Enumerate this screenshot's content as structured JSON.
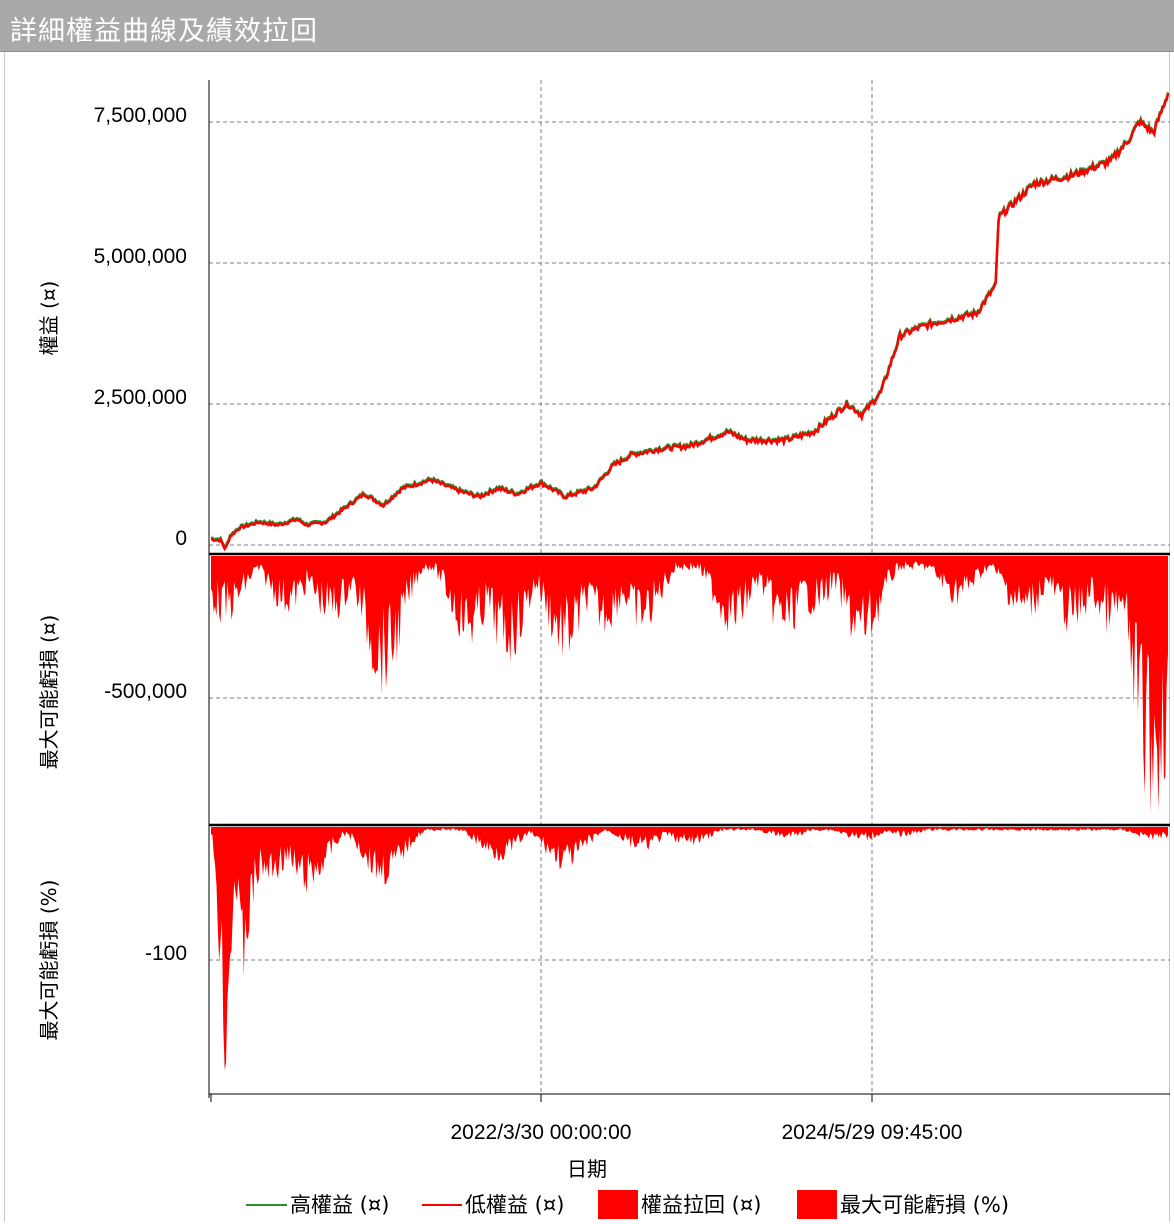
{
  "window": {
    "title": "詳細權益曲線及績效拉回"
  },
  "colors": {
    "high": "#2e8b2e",
    "low": "#ff0000",
    "fill": "#ff0000",
    "grid": "#808080"
  },
  "chart_data": [
    {
      "type": "line",
      "panel": "equity",
      "ylabel": "權益 (¤)",
      "yticks": [
        "7,500,000",
        "5,000,000",
        "2,500,000",
        "0"
      ],
      "ylim": [
        -150000,
        8200000
      ],
      "series": [
        {
          "name": "高權益 (¤)",
          "color": "#2e8b2e"
        },
        {
          "name": "低權益 (¤)",
          "color": "#ff0000"
        }
      ],
      "points": [
        [
          0,
          100000
        ],
        [
          0.01,
          80000
        ],
        [
          0.015,
          -80000
        ],
        [
          0.02,
          150000
        ],
        [
          0.03,
          300000
        ],
        [
          0.05,
          400000
        ],
        [
          0.07,
          350000
        ],
        [
          0.09,
          450000
        ],
        [
          0.1,
          350000
        ],
        [
          0.12,
          400000
        ],
        [
          0.14,
          650000
        ],
        [
          0.16,
          900000
        ],
        [
          0.18,
          700000
        ],
        [
          0.2,
          1000000
        ],
        [
          0.23,
          1150000
        ],
        [
          0.26,
          950000
        ],
        [
          0.28,
          850000
        ],
        [
          0.3,
          1000000
        ],
        [
          0.32,
          900000
        ],
        [
          0.345,
          1100000
        ],
        [
          0.37,
          850000
        ],
        [
          0.4,
          1000000
        ],
        [
          0.42,
          1400000
        ],
        [
          0.44,
          1600000
        ],
        [
          0.47,
          1700000
        ],
        [
          0.5,
          1750000
        ],
        [
          0.54,
          2000000
        ],
        [
          0.56,
          1850000
        ],
        [
          0.6,
          1850000
        ],
        [
          0.63,
          2000000
        ],
        [
          0.665,
          2500000
        ],
        [
          0.68,
          2300000
        ],
        [
          0.7,
          2700000
        ],
        [
          0.72,
          3700000
        ],
        [
          0.74,
          3850000
        ],
        [
          0.76,
          3950000
        ],
        [
          0.8,
          4100000
        ],
        [
          0.82,
          4600000
        ],
        [
          0.823,
          5800000
        ],
        [
          0.86,
          6400000
        ],
        [
          0.9,
          6550000
        ],
        [
          0.94,
          6800000
        ],
        [
          0.96,
          7200000
        ],
        [
          0.97,
          7500000
        ],
        [
          0.985,
          7300000
        ],
        [
          1,
          8000000
        ]
      ]
    },
    {
      "type": "area",
      "panel": "drawdown",
      "ylabel": "最大可能虧損 (¤)",
      "yticks": [
        "-500,000"
      ],
      "ylim": [
        -930000,
        0
      ],
      "series": [
        {
          "name": "權益拉回 (¤)",
          "color": "#ff0000"
        }
      ]
    },
    {
      "type": "area",
      "panel": "drawdown-pct",
      "ylabel": "最大可能虧損 (%)",
      "yticks": [
        "-100"
      ],
      "ylim": [
        -140,
        0
      ],
      "series": [
        {
          "name": "最大可能虧損 (%)",
          "color": "#ff0000"
        }
      ]
    }
  ],
  "xaxis": {
    "label": "日期",
    "ticks": [
      "2022/3/30 00:00:00",
      "2024/5/29 09:45:00"
    ]
  },
  "legend": [
    {
      "label": "高權益 (¤)",
      "icon": "line-green-icon"
    },
    {
      "label": "低權益 (¤)",
      "icon": "line-red-icon"
    },
    {
      "label": "權益拉回 (¤)",
      "icon": "red-box-icon"
    },
    {
      "label": "最大可能虧損 (%)",
      "icon": "red-box-icon"
    }
  ]
}
